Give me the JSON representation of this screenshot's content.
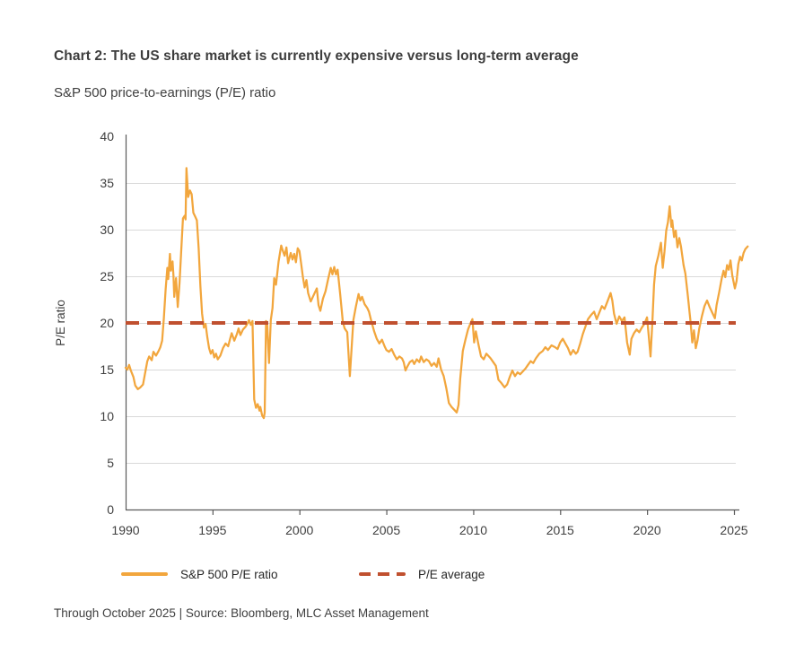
{
  "header": {
    "title": "Chart 2: The US share market is currently expensive versus long-term average",
    "subtitle": "S&P 500 price-to-earnings (P/E) ratio"
  },
  "legend": {
    "items": [
      {
        "label": "S&P 500 P/E ratio",
        "style": "solid-line",
        "color": "#F2A63D"
      },
      {
        "label": "P/E average",
        "style": "dashed-line",
        "color": "#C0502F"
      }
    ]
  },
  "footer": {
    "text": "Through October 2025  |  Source: Bloomberg, MLC Asset Management"
  },
  "chart_data": {
    "type": "line",
    "title": "S&P 500 price-to-earnings (P/E) ratio",
    "xlabel": "",
    "ylabel": "P/E ratio",
    "xlim": [
      1990,
      2025.9
    ],
    "ylim": [
      0,
      40
    ],
    "x_ticks": [
      1990,
      1995,
      2000,
      2005,
      2010,
      2015,
      2020,
      2025
    ],
    "y_ticks": [
      0,
      5,
      10,
      15,
      20,
      25,
      30,
      35,
      40
    ],
    "grid": "horizontal",
    "colors": {
      "series": "#F2A63D",
      "average": "#C0502F",
      "gridline": "#d9d9d9",
      "axis": "#595959",
      "tick_text": "#3f3f3f"
    },
    "average_line": {
      "name": "P/E average",
      "value": 20
    },
    "series": [
      {
        "name": "S&P 500 P/E ratio",
        "points": [
          [
            1990.0,
            15.2
          ],
          [
            1990.1,
            15.0
          ],
          [
            1990.2,
            15.5
          ],
          [
            1990.3,
            14.9
          ],
          [
            1990.45,
            14.2
          ],
          [
            1990.55,
            13.3
          ],
          [
            1990.7,
            12.9
          ],
          [
            1990.85,
            13.1
          ],
          [
            1991.0,
            13.4
          ],
          [
            1991.1,
            14.4
          ],
          [
            1991.25,
            15.9
          ],
          [
            1991.35,
            16.4
          ],
          [
            1991.5,
            16.0
          ],
          [
            1991.6,
            16.9
          ],
          [
            1991.75,
            16.5
          ],
          [
            1991.9,
            17.0
          ],
          [
            1992.0,
            17.4
          ],
          [
            1992.1,
            18.1
          ],
          [
            1992.2,
            20.5
          ],
          [
            1992.3,
            23.6
          ],
          [
            1992.4,
            25.9
          ],
          [
            1992.45,
            24.7
          ],
          [
            1992.55,
            27.4
          ],
          [
            1992.6,
            25.6
          ],
          [
            1992.7,
            26.6
          ],
          [
            1992.75,
            25.1
          ],
          [
            1992.8,
            22.8
          ],
          [
            1992.9,
            24.8
          ],
          [
            1993.0,
            21.7
          ],
          [
            1993.1,
            24.3
          ],
          [
            1993.2,
            27.8
          ],
          [
            1993.3,
            31.2
          ],
          [
            1993.4,
            31.5
          ],
          [
            1993.45,
            31.1
          ],
          [
            1993.5,
            36.6
          ],
          [
            1993.6,
            33.5
          ],
          [
            1993.7,
            34.2
          ],
          [
            1993.8,
            33.8
          ],
          [
            1993.9,
            31.8
          ],
          [
            1994.0,
            31.4
          ],
          [
            1994.1,
            31.0
          ],
          [
            1994.2,
            28.0
          ],
          [
            1994.3,
            24.0
          ],
          [
            1994.4,
            21.0
          ],
          [
            1994.5,
            19.5
          ],
          [
            1994.6,
            19.9
          ],
          [
            1994.7,
            18.5
          ],
          [
            1994.8,
            17.3
          ],
          [
            1994.9,
            16.7
          ],
          [
            1995.0,
            17.1
          ],
          [
            1995.1,
            16.3
          ],
          [
            1995.2,
            16.7
          ],
          [
            1995.3,
            16.1
          ],
          [
            1995.45,
            16.5
          ],
          [
            1995.6,
            17.3
          ],
          [
            1995.75,
            17.8
          ],
          [
            1995.9,
            17.5
          ],
          [
            1996.0,
            18.2
          ],
          [
            1996.1,
            18.9
          ],
          [
            1996.25,
            18.1
          ],
          [
            1996.4,
            18.8
          ],
          [
            1996.5,
            19.4
          ],
          [
            1996.6,
            18.7
          ],
          [
            1996.75,
            19.3
          ],
          [
            1996.9,
            19.6
          ],
          [
            1997.0,
            19.9
          ],
          [
            1997.1,
            20.3
          ],
          [
            1997.2,
            19.8
          ],
          [
            1997.3,
            20.2
          ],
          [
            1997.4,
            11.8
          ],
          [
            1997.5,
            10.9
          ],
          [
            1997.6,
            11.3
          ],
          [
            1997.7,
            10.6
          ],
          [
            1997.75,
            11.0
          ],
          [
            1997.85,
            10.1
          ],
          [
            1997.95,
            9.8
          ],
          [
            1998.0,
            10.4
          ],
          [
            1998.08,
            20.2
          ],
          [
            1998.15,
            19.7
          ],
          [
            1998.25,
            15.7
          ],
          [
            1998.35,
            20.3
          ],
          [
            1998.45,
            21.6
          ],
          [
            1998.55,
            24.8
          ],
          [
            1998.65,
            24.1
          ],
          [
            1998.8,
            26.6
          ],
          [
            1998.95,
            28.3
          ],
          [
            1999.05,
            27.7
          ],
          [
            1999.15,
            27.2
          ],
          [
            1999.25,
            28.1
          ],
          [
            1999.35,
            26.4
          ],
          [
            1999.5,
            27.5
          ],
          [
            1999.6,
            26.8
          ],
          [
            1999.7,
            27.4
          ],
          [
            1999.8,
            26.5
          ],
          [
            1999.9,
            28.0
          ],
          [
            2000.0,
            27.7
          ],
          [
            2000.1,
            26.3
          ],
          [
            2000.2,
            24.9
          ],
          [
            2000.3,
            23.8
          ],
          [
            2000.4,
            24.6
          ],
          [
            2000.5,
            23.2
          ],
          [
            2000.65,
            22.3
          ],
          [
            2000.8,
            22.9
          ],
          [
            2000.9,
            23.3
          ],
          [
            2001.0,
            23.7
          ],
          [
            2001.1,
            21.9
          ],
          [
            2001.2,
            21.3
          ],
          [
            2001.35,
            22.6
          ],
          [
            2001.5,
            23.4
          ],
          [
            2001.65,
            24.7
          ],
          [
            2001.8,
            25.9
          ],
          [
            2001.9,
            25.2
          ],
          [
            2002.0,
            26.0
          ],
          [
            2002.1,
            25.2
          ],
          [
            2002.2,
            25.7
          ],
          [
            2002.35,
            23.0
          ],
          [
            2002.5,
            20.1
          ],
          [
            2002.6,
            19.4
          ],
          [
            2002.75,
            19.0
          ],
          [
            2002.9,
            14.3
          ],
          [
            2003.0,
            17.2
          ],
          [
            2003.1,
            20.3
          ],
          [
            2003.25,
            21.8
          ],
          [
            2003.4,
            23.1
          ],
          [
            2003.5,
            22.4
          ],
          [
            2003.6,
            22.8
          ],
          [
            2003.75,
            22.0
          ],
          [
            2003.9,
            21.6
          ],
          [
            2004.0,
            21.2
          ],
          [
            2004.15,
            20.1
          ],
          [
            2004.3,
            19.1
          ],
          [
            2004.45,
            18.3
          ],
          [
            2004.6,
            17.8
          ],
          [
            2004.75,
            18.2
          ],
          [
            2004.9,
            17.5
          ],
          [
            2005.0,
            17.1
          ],
          [
            2005.15,
            16.9
          ],
          [
            2005.3,
            17.2
          ],
          [
            2005.45,
            16.6
          ],
          [
            2005.6,
            16.1
          ],
          [
            2005.75,
            16.4
          ],
          [
            2005.9,
            16.2
          ],
          [
            2006.0,
            15.8
          ],
          [
            2006.1,
            14.9
          ],
          [
            2006.2,
            15.3
          ],
          [
            2006.35,
            15.8
          ],
          [
            2006.5,
            16.0
          ],
          [
            2006.6,
            15.6
          ],
          [
            2006.75,
            16.1
          ],
          [
            2006.9,
            15.8
          ],
          [
            2007.0,
            16.4
          ],
          [
            2007.15,
            15.8
          ],
          [
            2007.3,
            16.1
          ],
          [
            2007.45,
            15.9
          ],
          [
            2007.6,
            15.4
          ],
          [
            2007.75,
            15.7
          ],
          [
            2007.9,
            15.3
          ],
          [
            2008.0,
            16.2
          ],
          [
            2008.15,
            15.0
          ],
          [
            2008.3,
            14.3
          ],
          [
            2008.45,
            13.0
          ],
          [
            2008.6,
            11.4
          ],
          [
            2008.75,
            11.0
          ],
          [
            2008.9,
            10.7
          ],
          [
            2009.05,
            10.4
          ],
          [
            2009.15,
            11.2
          ],
          [
            2009.25,
            14.0
          ],
          [
            2009.4,
            17.0
          ],
          [
            2009.55,
            18.2
          ],
          [
            2009.7,
            19.3
          ],
          [
            2009.85,
            20.0
          ],
          [
            2009.95,
            20.4
          ],
          [
            2010.05,
            17.9
          ],
          [
            2010.15,
            19.1
          ],
          [
            2010.3,
            17.7
          ],
          [
            2010.45,
            16.4
          ],
          [
            2010.6,
            16.1
          ],
          [
            2010.75,
            16.7
          ],
          [
            2010.9,
            16.4
          ],
          [
            2011.0,
            16.2
          ],
          [
            2011.15,
            15.8
          ],
          [
            2011.3,
            15.4
          ],
          [
            2011.45,
            13.9
          ],
          [
            2011.6,
            13.6
          ],
          [
            2011.8,
            13.1
          ],
          [
            2011.95,
            13.4
          ],
          [
            2012.1,
            14.2
          ],
          [
            2012.25,
            14.9
          ],
          [
            2012.4,
            14.3
          ],
          [
            2012.55,
            14.7
          ],
          [
            2012.7,
            14.5
          ],
          [
            2012.85,
            14.8
          ],
          [
            2013.0,
            15.1
          ],
          [
            2013.15,
            15.5
          ],
          [
            2013.3,
            15.9
          ],
          [
            2013.45,
            15.7
          ],
          [
            2013.6,
            16.2
          ],
          [
            2013.8,
            16.7
          ],
          [
            2014.0,
            17.0
          ],
          [
            2014.15,
            17.4
          ],
          [
            2014.3,
            17.1
          ],
          [
            2014.5,
            17.6
          ],
          [
            2014.7,
            17.4
          ],
          [
            2014.85,
            17.2
          ],
          [
            2015.0,
            17.9
          ],
          [
            2015.15,
            18.3
          ],
          [
            2015.3,
            17.8
          ],
          [
            2015.45,
            17.3
          ],
          [
            2015.6,
            16.6
          ],
          [
            2015.75,
            17.1
          ],
          [
            2015.9,
            16.7
          ],
          [
            2016.0,
            16.9
          ],
          [
            2016.15,
            17.8
          ],
          [
            2016.3,
            18.8
          ],
          [
            2016.45,
            19.6
          ],
          [
            2016.6,
            20.4
          ],
          [
            2016.8,
            20.9
          ],
          [
            2016.95,
            21.2
          ],
          [
            2017.1,
            20.4
          ],
          [
            2017.25,
            21.1
          ],
          [
            2017.4,
            21.8
          ],
          [
            2017.55,
            21.5
          ],
          [
            2017.7,
            22.2
          ],
          [
            2017.9,
            23.2
          ],
          [
            2018.0,
            22.4
          ],
          [
            2018.1,
            21.0
          ],
          [
            2018.25,
            19.9
          ],
          [
            2018.4,
            20.7
          ],
          [
            2018.55,
            20.2
          ],
          [
            2018.7,
            20.6
          ],
          [
            2018.85,
            17.9
          ],
          [
            2019.0,
            16.6
          ],
          [
            2019.1,
            18.3
          ],
          [
            2019.25,
            18.9
          ],
          [
            2019.4,
            19.3
          ],
          [
            2019.55,
            19.0
          ],
          [
            2019.7,
            19.5
          ],
          [
            2019.85,
            19.9
          ],
          [
            2020.0,
            20.6
          ],
          [
            2020.1,
            18.5
          ],
          [
            2020.2,
            16.4
          ],
          [
            2020.3,
            20.0
          ],
          [
            2020.4,
            24.1
          ],
          [
            2020.5,
            26.1
          ],
          [
            2020.65,
            27.2
          ],
          [
            2020.8,
            28.6
          ],
          [
            2020.9,
            25.9
          ],
          [
            2021.0,
            27.6
          ],
          [
            2021.1,
            29.9
          ],
          [
            2021.2,
            30.8
          ],
          [
            2021.3,
            32.5
          ],
          [
            2021.4,
            30.3
          ],
          [
            2021.45,
            31.0
          ],
          [
            2021.55,
            29.2
          ],
          [
            2021.65,
            29.9
          ],
          [
            2021.75,
            28.1
          ],
          [
            2021.85,
            29.1
          ],
          [
            2021.95,
            28.2
          ],
          [
            2022.1,
            26.2
          ],
          [
            2022.2,
            25.3
          ],
          [
            2022.35,
            22.8
          ],
          [
            2022.5,
            20.1
          ],
          [
            2022.6,
            17.9
          ],
          [
            2022.7,
            19.2
          ],
          [
            2022.8,
            17.3
          ],
          [
            2022.9,
            18.1
          ],
          [
            2023.0,
            19.4
          ],
          [
            2023.15,
            20.7
          ],
          [
            2023.3,
            21.8
          ],
          [
            2023.45,
            22.4
          ],
          [
            2023.6,
            21.7
          ],
          [
            2023.75,
            21.1
          ],
          [
            2023.9,
            20.5
          ],
          [
            2024.0,
            21.9
          ],
          [
            2024.15,
            23.3
          ],
          [
            2024.3,
            24.8
          ],
          [
            2024.4,
            25.6
          ],
          [
            2024.5,
            24.9
          ],
          [
            2024.6,
            26.2
          ],
          [
            2024.7,
            25.7
          ],
          [
            2024.8,
            26.7
          ],
          [
            2024.9,
            25.1
          ],
          [
            2025.05,
            23.7
          ],
          [
            2025.15,
            24.5
          ],
          [
            2025.25,
            26.3
          ],
          [
            2025.35,
            27.1
          ],
          [
            2025.45,
            26.7
          ],
          [
            2025.55,
            27.5
          ],
          [
            2025.65,
            27.9
          ],
          [
            2025.79,
            28.2
          ]
        ]
      }
    ]
  }
}
